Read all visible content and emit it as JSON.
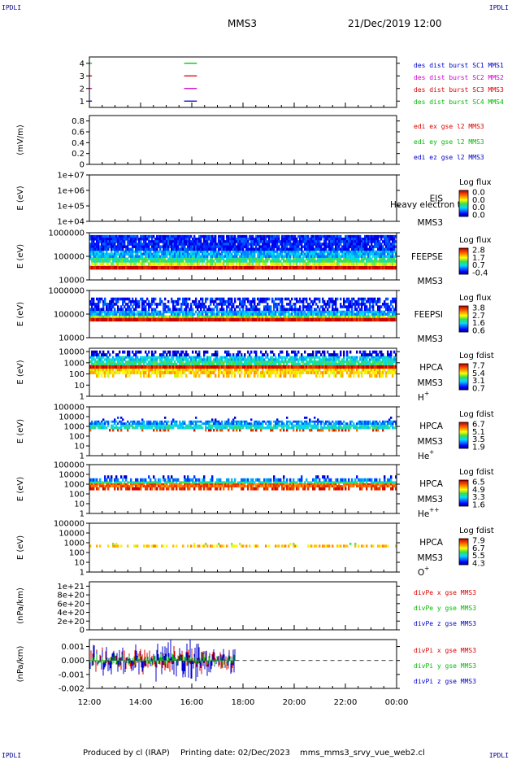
{
  "header": {
    "corner_label": "IPDLI",
    "spacecraft": "MMS3",
    "datetime": "21/Dec/2019 12:00"
  },
  "footer": {
    "produced_by": "Produced by cl (IRAP)",
    "printing_date": "Printing date: 02/Dec/2023",
    "filename": "mms_mms3_srvy_vue_web2.cl"
  },
  "colors": {
    "mms1": "#0000cc",
    "mms2": "#cc00cc",
    "mms3": "#dd0000",
    "mms4": "#00bb00"
  },
  "chart_data": {
    "type": "multi-panel time series",
    "x_ticks": [
      "12:00",
      "14:00",
      "16:00",
      "18:00",
      "20:00",
      "22:00",
      "00:00"
    ],
    "x_range_hours": [
      12,
      24
    ],
    "data_end_hour": 17.7,
    "panels": [
      {
        "kind": "burst",
        "y_ticks": [
          "1",
          "2",
          "3",
          "4"
        ],
        "ylim": [
          0.5,
          4.5
        ],
        "legend": [
          "des dist burst SC1 MMS1",
          "des dist burst SC2 MMS2",
          "des dist burst SC3 MMS3",
          "des dist burst SC4 MMS4"
        ],
        "intervals": [
          {
            "level": 4,
            "start": 12.0,
            "end": 12.1,
            "color": "mms4"
          },
          {
            "level": 4,
            "start": 15.7,
            "end": 16.2,
            "color": "mms4"
          },
          {
            "level": 3,
            "start": 12.0,
            "end": 12.1,
            "color": "mms3"
          },
          {
            "level": 3,
            "start": 15.7,
            "end": 16.2,
            "color": "mms3"
          },
          {
            "level": 2,
            "start": 12.0,
            "end": 12.1,
            "color": "mms2"
          },
          {
            "level": 2,
            "start": 15.7,
            "end": 16.2,
            "color": "mms2"
          },
          {
            "level": 1,
            "start": 12.0,
            "end": 12.1,
            "color": "mms1"
          },
          {
            "level": 1,
            "start": 15.7,
            "end": 16.2,
            "color": "mms1"
          }
        ]
      },
      {
        "kind": "line",
        "ylabel": "(mV/m)",
        "y_ticks": [
          "0",
          "0.2",
          "0.4",
          "0.6",
          "0.8"
        ],
        "ylim": [
          0,
          0.9
        ],
        "legend": [
          "edi ex gse l2 MMS3",
          "edi ey gse l2 MMS3",
          "edi ez gse l2 MMS3"
        ],
        "dashed_zero": true
      },
      {
        "kind": "spectrogram",
        "ylabel": "E (eV)",
        "y_ticks": [
          "1e+04",
          "1e+05",
          "1e+06",
          "1e+07"
        ],
        "ylim": [
          4,
          7
        ],
        "instrument": [
          "EIS",
          "MMS3"
        ],
        "overlay_text": "Heavy electron to",
        "colorbar_title": "Log flux",
        "colorbar_ticks": [
          "0.0",
          "0.0",
          "0.0",
          "0.0"
        ],
        "bands": []
      },
      {
        "kind": "spectrogram",
        "ylabel": "E (eV)",
        "y_ticks": [
          "10000",
          "100000",
          "1000000"
        ],
        "ylim": [
          4,
          6
        ],
        "instrument": [
          "FEEPSE",
          "MMS3"
        ],
        "colorbar_title": "Log flux",
        "colorbar_ticks": [
          "2.8",
          "1.7",
          "0.7",
          "-0.4"
        ],
        "bands": [
          {
            "from": 4.45,
            "to": 4.6,
            "level": 0.98,
            "noise": 0
          },
          {
            "from": 4.6,
            "to": 4.75,
            "level": 0.62,
            "noise": 0.08
          },
          {
            "from": 4.75,
            "to": 4.95,
            "level": 0.45,
            "noise": 0.08
          },
          {
            "from": 4.95,
            "to": 5.25,
            "level": 0.3,
            "noise": 0.08
          },
          {
            "from": 5.25,
            "to": 5.9,
            "level": 0.15,
            "noise": 0.08
          }
        ]
      },
      {
        "kind": "spectrogram",
        "ylabel": "E (eV)",
        "y_ticks": [
          "10000",
          "100000",
          "1000000"
        ],
        "ylim": [
          4,
          6
        ],
        "instrument": [
          "FEEPSI",
          "MMS3"
        ],
        "colorbar_title": "Log flux",
        "colorbar_ticks": [
          "3.8",
          "2.7",
          "1.6",
          "0.6"
        ],
        "bands": [
          {
            "from": 4.7,
            "to": 4.85,
            "level": 0.98,
            "noise": 0
          },
          {
            "from": 4.85,
            "to": 4.95,
            "level": 0.55,
            "noise": 0.05
          },
          {
            "from": 4.95,
            "to": 5.15,
            "level": 0.3,
            "noise": 0.1
          },
          {
            "from": 5.15,
            "to": 5.7,
            "level": 0.15,
            "noise": 0.35
          }
        ]
      },
      {
        "kind": "spectrogram",
        "ylabel": "E (eV)",
        "y_ticks": [
          "1",
          "10",
          "100",
          "1000",
          "10000"
        ],
        "ylim": [
          0,
          4.3
        ],
        "instrument": [
          "HPCA",
          "MMS3"
        ],
        "species": "H",
        "species_sup": "+",
        "colorbar_title": "Log fdist",
        "colorbar_ticks": [
          "7.7",
          "5.4",
          "3.1",
          "0.7"
        ],
        "bands": [
          {
            "from": 1.7,
            "to": 2.0,
            "level": 0.7,
            "noise": 0.6
          },
          {
            "from": 2.0,
            "to": 2.5,
            "level": 0.7,
            "noise": 0.1
          },
          {
            "from": 2.5,
            "to": 2.8,
            "level": 0.95,
            "noise": 0
          },
          {
            "from": 2.8,
            "to": 3.2,
            "level": 0.45,
            "noise": 0.1
          },
          {
            "from": 3.2,
            "to": 3.6,
            "level": 0.35,
            "noise": 0.2
          },
          {
            "from": 3.6,
            "to": 4.1,
            "level": 0.1,
            "noise": 0.5
          }
        ]
      },
      {
        "kind": "spectrogram",
        "ylabel": "E (eV)",
        "y_ticks": [
          "1",
          "10",
          "100",
          "1000",
          "10000",
          "100000"
        ],
        "ylim": [
          0,
          5
        ],
        "instrument": [
          "HPCA",
          "MMS3"
        ],
        "species": "He",
        "species_sup": "+",
        "colorbar_title": "Log fdist",
        "colorbar_ticks": [
          "6.7",
          "5.1",
          "3.5",
          "1.9"
        ],
        "bands": [
          {
            "from": 2.5,
            "to": 2.75,
            "level": 0.9,
            "noise": 0.7
          },
          {
            "from": 2.75,
            "to": 3.2,
            "level": 0.4,
            "noise": 0.1
          },
          {
            "from": 3.2,
            "to": 3.6,
            "level": 0.25,
            "noise": 0.3
          },
          {
            "from": 3.6,
            "to": 4.0,
            "level": 0.1,
            "noise": 0.9
          }
        ]
      },
      {
        "kind": "spectrogram",
        "ylabel": "E (eV)",
        "y_ticks": [
          "1",
          "10",
          "100",
          "1000",
          "10000",
          "100000"
        ],
        "ylim": [
          0,
          5
        ],
        "instrument": [
          "HPCA",
          "MMS3"
        ],
        "species": "He",
        "species_sup": "++",
        "colorbar_title": "Log fdist",
        "colorbar_ticks": [
          "6.5",
          "4.9",
          "3.3",
          "1.6"
        ],
        "bands": [
          {
            "from": 2.4,
            "to": 2.7,
            "level": 0.92,
            "noise": 0.4
          },
          {
            "from": 2.7,
            "to": 3.1,
            "level": 0.85,
            "noise": 0.05
          },
          {
            "from": 3.1,
            "to": 3.3,
            "level": 0.45,
            "noise": 0.1
          },
          {
            "from": 3.3,
            "to": 3.6,
            "level": 0.25,
            "noise": 0.4
          },
          {
            "from": 3.6,
            "to": 3.9,
            "level": 0.1,
            "noise": 0.85
          }
        ]
      },
      {
        "kind": "spectrogram",
        "ylabel": "E (eV)",
        "y_ticks": [
          "1",
          "10",
          "100",
          "1000",
          "10000",
          "100000"
        ],
        "ylim": [
          0,
          5
        ],
        "instrument": [
          "HPCA",
          "MMS3"
        ],
        "species": "O",
        "species_sup": "+",
        "colorbar_title": "Log fdist",
        "colorbar_ticks": [
          "7.9",
          "6.7",
          "5.5",
          "4.3"
        ],
        "bands": [
          {
            "from": 2.55,
            "to": 2.8,
            "level": 0.72,
            "noise": 0.5
          },
          {
            "from": 2.8,
            "to": 3.0,
            "level": 0.55,
            "noise": 0.92
          }
        ]
      },
      {
        "kind": "line",
        "ylabel": "(nPa/km)",
        "y_ticks": [
          "0",
          "2e+20",
          "4e+20",
          "6e+20",
          "8e+20",
          "1e+21"
        ],
        "ylim": [
          0,
          1.1e+21
        ],
        "legend": [
          "divPe x gse MMS3",
          "divPe y gse MMS3",
          "divPe z gse MMS3"
        ],
        "dashed_zero": true
      },
      {
        "kind": "noise",
        "ylabel": "(nPa/km)",
        "y_ticks": [
          "-0.002",
          "-0.001",
          "0.000",
          "0.001"
        ],
        "ylim": [
          -0.002,
          0.0015
        ],
        "legend": [
          "divPi x gse MMS3",
          "divPi y gse MMS3",
          "divPi z gse MMS3"
        ],
        "dashed_zero": true
      }
    ]
  }
}
